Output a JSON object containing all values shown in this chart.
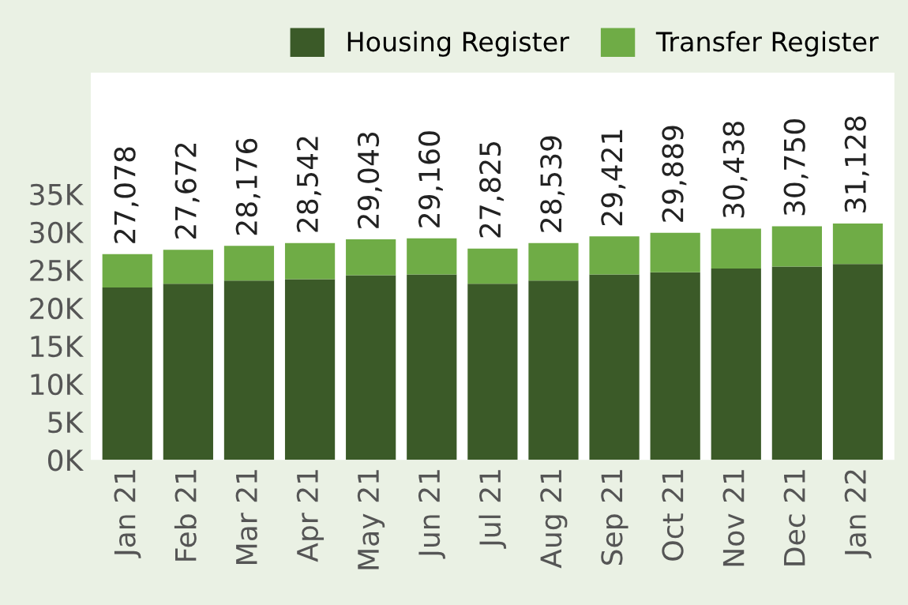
{
  "chart_data": {
    "type": "bar",
    "stacked": true,
    "categories": [
      "Jan 21",
      "Feb 21",
      "Mar 21",
      "Apr 21",
      "May 21",
      "Jun 21",
      "Jul 21",
      "Aug 21",
      "Sep 21",
      "Oct 21",
      "Nov 21",
      "Dec 21",
      "Jan 22"
    ],
    "series": [
      {
        "name": "Housing Register",
        "color": "#3b5a28",
        "values": [
          22700,
          23200,
          23600,
          23800,
          24300,
          24400,
          23200,
          23600,
          24400,
          24700,
          25200,
          25450,
          25800
        ]
      },
      {
        "name": "Transfer Register",
        "color": "#6fac46",
        "values": [
          4378,
          4472,
          4576,
          4742,
          4743,
          4760,
          4625,
          4939,
          5021,
          5189,
          5238,
          5300,
          5328
        ]
      }
    ],
    "totals": [
      "27,078",
      "27,672",
      "28,176",
      "28,542",
      "29,043",
      "29,160",
      "27,825",
      "28,539",
      "29,421",
      "29,889",
      "30,438",
      "30,750",
      "31,128"
    ],
    "ylim": [
      0,
      51000
    ],
    "yticks": [
      {
        "value": 0,
        "label": "0K"
      },
      {
        "value": 5000,
        "label": "5K"
      },
      {
        "value": 10000,
        "label": "10K"
      },
      {
        "value": 15000,
        "label": "15K"
      },
      {
        "value": 20000,
        "label": "20K"
      },
      {
        "value": 25000,
        "label": "25K"
      },
      {
        "value": 30000,
        "label": "30K"
      },
      {
        "value": 35000,
        "label": "35K"
      }
    ],
    "grid": false,
    "legend": "top right"
  }
}
